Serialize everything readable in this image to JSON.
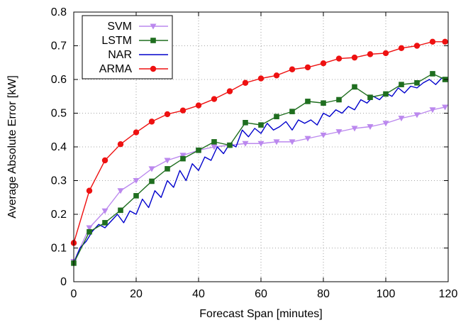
{
  "chart_data": {
    "type": "line",
    "xlabel": "Forecast Span [minutes]",
    "ylabel": "Average Absolute Error [kW]",
    "xlim": [
      0,
      120
    ],
    "ylim": [
      0,
      0.8
    ],
    "x_ticks": [
      "0",
      "20",
      "40",
      "60",
      "80",
      "100",
      "120"
    ],
    "y_ticks": [
      "0",
      "0.1",
      "0.2",
      "0.3",
      "0.4",
      "0.5",
      "0.6",
      "0.7",
      "0.8"
    ],
    "grid": true,
    "legend_position": "top-left",
    "series": [
      {
        "name": "SVM",
        "color": "#bb88ee",
        "marker": "triangle-down",
        "x": [
          0,
          5,
          10,
          15,
          20,
          25,
          30,
          35,
          40,
          45,
          50,
          55,
          60,
          65,
          70,
          75,
          80,
          85,
          90,
          95,
          100,
          105,
          110,
          115,
          119
        ],
        "y": [
          0.06,
          0.16,
          0.21,
          0.27,
          0.3,
          0.335,
          0.36,
          0.375,
          0.39,
          0.4,
          0.405,
          0.41,
          0.41,
          0.415,
          0.415,
          0.425,
          0.435,
          0.445,
          0.455,
          0.46,
          0.47,
          0.485,
          0.495,
          0.51,
          0.518
        ]
      },
      {
        "name": "LSTM",
        "color": "#1f6e1f",
        "marker": "square",
        "x": [
          0,
          5,
          10,
          15,
          20,
          25,
          30,
          35,
          40,
          45,
          50,
          55,
          60,
          65,
          70,
          75,
          80,
          85,
          90,
          95,
          100,
          105,
          110,
          115,
          119
        ],
        "y": [
          0.055,
          0.148,
          0.175,
          0.212,
          0.255,
          0.298,
          0.335,
          0.365,
          0.39,
          0.415,
          0.405,
          0.472,
          0.465,
          0.49,
          0.505,
          0.535,
          0.53,
          0.54,
          0.578,
          0.547,
          0.557,
          0.585,
          0.59,
          0.617,
          0.6
        ]
      },
      {
        "name": "NAR",
        "color": "#0000cc",
        "marker": "none",
        "x": [
          0,
          2,
          4,
          6,
          8,
          10,
          12,
          14,
          16,
          18,
          20,
          22,
          24,
          26,
          28,
          30,
          32,
          34,
          36,
          38,
          40,
          42,
          44,
          46,
          48,
          50,
          52,
          54,
          56,
          58,
          60,
          62,
          64,
          66,
          68,
          70,
          72,
          74,
          76,
          78,
          80,
          82,
          84,
          86,
          88,
          90,
          92,
          94,
          96,
          98,
          100,
          102,
          104,
          106,
          108,
          110,
          112,
          114,
          116,
          118,
          119
        ],
        "y": [
          0.055,
          0.1,
          0.12,
          0.15,
          0.17,
          0.16,
          0.18,
          0.2,
          0.175,
          0.21,
          0.2,
          0.245,
          0.22,
          0.27,
          0.25,
          0.3,
          0.28,
          0.33,
          0.3,
          0.35,
          0.33,
          0.37,
          0.36,
          0.4,
          0.38,
          0.41,
          0.4,
          0.45,
          0.43,
          0.455,
          0.44,
          0.47,
          0.45,
          0.46,
          0.475,
          0.45,
          0.48,
          0.47,
          0.48,
          0.465,
          0.5,
          0.49,
          0.51,
          0.5,
          0.52,
          0.51,
          0.54,
          0.53,
          0.55,
          0.54,
          0.56,
          0.55,
          0.575,
          0.56,
          0.58,
          0.575,
          0.59,
          0.6,
          0.585,
          0.605,
          0.598
        ]
      },
      {
        "name": "ARMA",
        "color": "#ee1111",
        "marker": "circle",
        "x": [
          0,
          5,
          10,
          15,
          20,
          25,
          30,
          35,
          40,
          45,
          50,
          55,
          60,
          65,
          70,
          75,
          80,
          85,
          90,
          95,
          100,
          105,
          110,
          115,
          119
        ],
        "y": [
          0.115,
          0.27,
          0.36,
          0.408,
          0.443,
          0.475,
          0.497,
          0.508,
          0.523,
          0.542,
          0.565,
          0.59,
          0.603,
          0.612,
          0.63,
          0.636,
          0.648,
          0.662,
          0.665,
          0.675,
          0.678,
          0.693,
          0.7,
          0.712,
          0.712
        ]
      }
    ]
  }
}
